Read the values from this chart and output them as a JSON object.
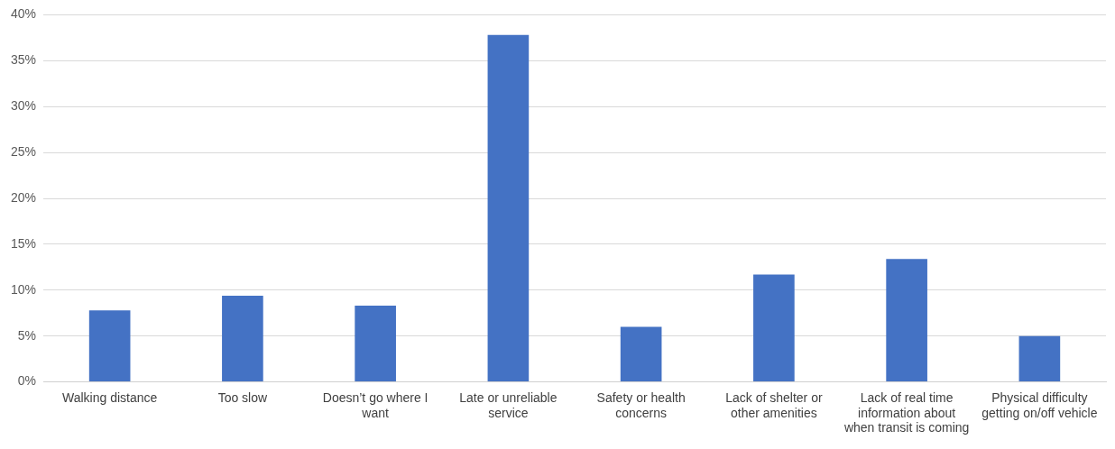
{
  "chart_data": {
    "type": "bar",
    "categories": [
      "Walking distance",
      "Too slow",
      "Doesn’t go where I want",
      "Late or unreliable service",
      "Safety or health concerns",
      "Lack of shelter or other amenities",
      "Lack of real time information about when transit is coming",
      "Physical difficulty getting on/off vehicle"
    ],
    "values": [
      7.8,
      9.4,
      8.3,
      37.8,
      6.0,
      11.7,
      13.4,
      5.0
    ],
    "color": "#4472c4",
    "ylim": [
      0,
      40
    ],
    "yticks": [
      {
        "value": 0,
        "label": "0%"
      },
      {
        "value": 5,
        "label": "5%"
      },
      {
        "value": 10,
        "label": "10%"
      },
      {
        "value": 15,
        "label": "15%"
      },
      {
        "value": 20,
        "label": "20%"
      },
      {
        "value": 25,
        "label": "25%"
      },
      {
        "value": 30,
        "label": "30%"
      },
      {
        "value": 35,
        "label": "35%"
      },
      {
        "value": 40,
        "label": "40%"
      }
    ],
    "grid": "y",
    "legend": false
  }
}
